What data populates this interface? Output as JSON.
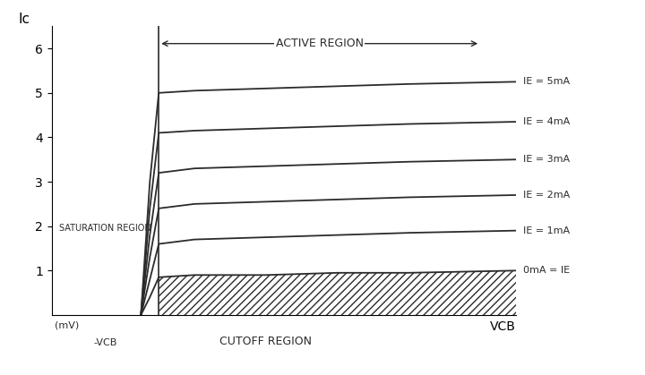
{
  "chart_data": {
    "type": "line",
    "x_label": "VCB",
    "y_label": "Ic",
    "x": [
      -0.5,
      -0.25,
      0,
      1,
      3,
      5,
      7,
      10
    ],
    "xlim": [
      -3,
      10
    ],
    "ylim": [
      0,
      6.5
    ],
    "yticks": [
      1,
      2,
      3,
      4,
      5,
      6
    ],
    "tick_labels": "y",
    "grid": false,
    "color": "#2b2b2b",
    "series": [
      {
        "name": "IE = 5mA",
        "values": [
          0,
          3.0,
          5.0,
          5.05,
          5.1,
          5.15,
          5.2,
          5.25
        ]
      },
      {
        "name": "IE = 4mA",
        "values": [
          0,
          2.4,
          4.1,
          4.15,
          4.2,
          4.25,
          4.3,
          4.35
        ]
      },
      {
        "name": "IE = 3mA",
        "values": [
          0,
          1.8,
          3.2,
          3.3,
          3.35,
          3.4,
          3.45,
          3.5
        ]
      },
      {
        "name": "IE = 2mA",
        "values": [
          0,
          1.3,
          2.4,
          2.5,
          2.55,
          2.6,
          2.65,
          2.7
        ]
      },
      {
        "name": "IE = 1mA",
        "values": [
          0,
          0.8,
          1.6,
          1.7,
          1.75,
          1.8,
          1.85,
          1.9
        ]
      },
      {
        "name": "0mA = IE",
        "values": [
          0,
          0.4,
          0.85,
          0.9,
          0.9,
          0.95,
          0.95,
          1.0
        ]
      }
    ],
    "annotations": [
      "ACTIVE REGION",
      "SATURATION REGION",
      "CUTOFF REGION",
      "(mV)",
      "-VCB"
    ]
  }
}
